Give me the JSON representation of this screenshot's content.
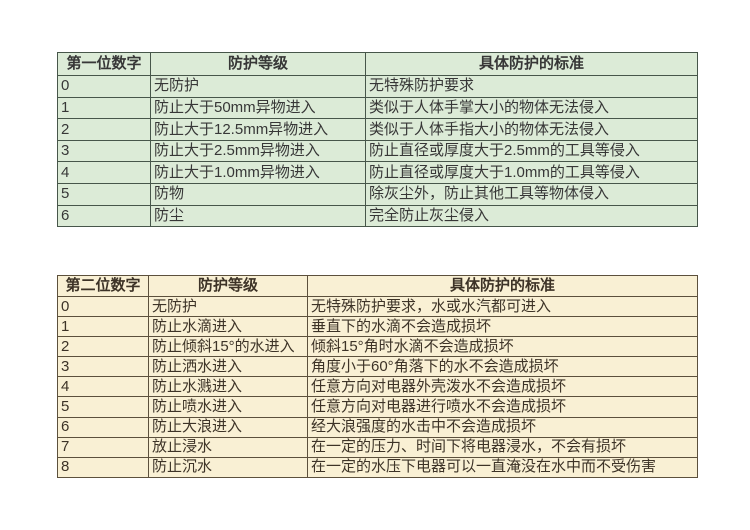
{
  "page": {
    "background_color": "#ffffff"
  },
  "table1": {
    "title_semantic": "first-digit-protection-table",
    "header": [
      "第一位数字",
      "防护等级",
      "具体防护的标准"
    ],
    "colors": {
      "bg": "#dcebd7",
      "border": "#47564a",
      "text": "#373737"
    },
    "rows": [
      [
        "0",
        "无防护",
        "无特殊防护要求"
      ],
      [
        "1",
        "防止大于50mm异物进入",
        "类似于人体手掌大小的物体无法侵入"
      ],
      [
        "2",
        "防止大于12.5mm异物进入",
        "类似于人体手指大小的物体无法侵入"
      ],
      [
        "3",
        "防止大于2.5mm异物进入",
        "防止直径或厚度大于2.5mm的工具等侵入"
      ],
      [
        "4",
        "防止大于1.0mm异物进入",
        "防止直径或厚度大于1.0mm的工具等侵入"
      ],
      [
        "5",
        "防物",
        "除灰尘外，防止其他工具等物体侵入"
      ],
      [
        "6",
        "防尘",
        "完全防止灰尘侵入"
      ]
    ]
  },
  "table2": {
    "title_semantic": "second-digit-protection-table",
    "header": [
      "第二位数字",
      "防护等级",
      "具体防护的标准"
    ],
    "colors": {
      "bg": "#f9f0d4",
      "border": "#5c503c",
      "text": "#3d3327"
    },
    "rows": [
      [
        "0",
        "无防护",
        "无特殊防护要求，水或水汽都可进入"
      ],
      [
        "1",
        "防止水滴进入",
        "垂直下的水滴不会造成损坏"
      ],
      [
        "2",
        "防止倾斜15°的水进入",
        "倾斜15°角时水滴不会造成损坏"
      ],
      [
        "3",
        "防止洒水进入",
        "角度小于60°角落下的水不会造成损坏"
      ],
      [
        "4",
        "防止水溅进入",
        "任意方向对电器外壳泼水不会造成损坏"
      ],
      [
        "5",
        "防止喷水进入",
        "任意方向对电器进行喷水不会造成损坏"
      ],
      [
        "6",
        "防止大浪进入",
        "经大浪强度的水击中不会造成损坏"
      ],
      [
        "7",
        "放止浸水",
        "在一定的压力、时间下将电器浸水，不会有损坏"
      ],
      [
        "8",
        "防止沉水",
        "在一定的水压下电器可以一直淹没在水中而不受伤害"
      ]
    ]
  }
}
